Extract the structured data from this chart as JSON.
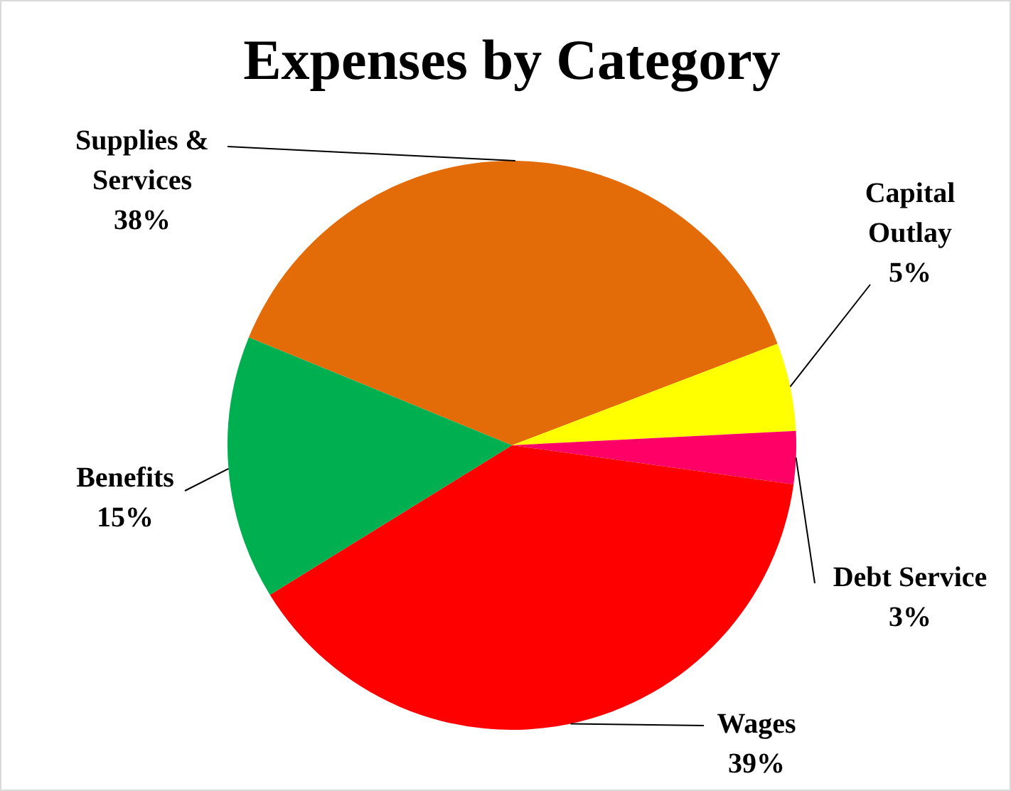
{
  "chart_data": {
    "type": "pie",
    "title": "Expenses by Category",
    "categories": [
      "Supplies & Services",
      "Capital Outlay",
      "Debt Service",
      "Wages",
      "Benefits"
    ],
    "values": [
      38,
      5,
      3,
      39,
      15
    ],
    "value_labels": [
      "38%",
      "5%",
      "3%",
      "39%",
      "15%"
    ],
    "colors": [
      "#e36c09",
      "#ffff00",
      "#ff0066",
      "#ff0000",
      "#00b050"
    ],
    "legend": false
  }
}
